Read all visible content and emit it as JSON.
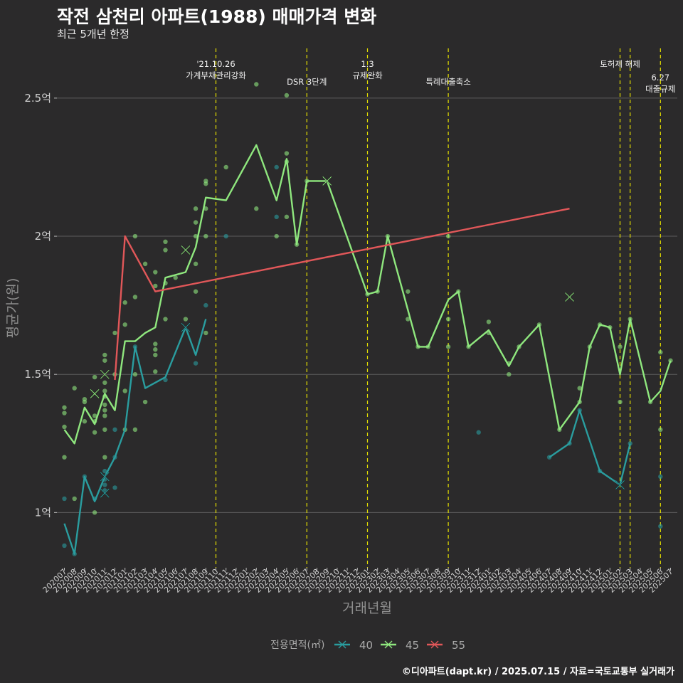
{
  "title": "작전 삼천리 아파트(1988) 매매가격 변화",
  "subtitle": "최근 5개년 한정",
  "caption": "©디아파트(dapt.kr) / 2025.07.15 / 자료=국토교통부 실거래가",
  "colors": {
    "background": "#2b2a2b",
    "s40": "#2a9d9f",
    "s45": "#8fe77e",
    "s55": "#e15759",
    "event_line": "#e7e200",
    "grid": "#5c5c5c",
    "text": "#cfcfcf"
  },
  "chart_data": {
    "type": "line",
    "xlabel": "거래년월",
    "ylabel": "평균가(원)",
    "ylim": [
      0.8,
      2.68
    ],
    "grid": true,
    "legend_position": "bottom",
    "legend_title": "전용면적(㎡)",
    "categories": [
      "202007",
      "202008",
      "202009",
      "202010",
      "202011",
      "202012",
      "202101",
      "202102",
      "202103",
      "202104",
      "202105",
      "202106",
      "202107",
      "202108",
      "202109",
      "202110",
      "202111",
      "202112",
      "202201",
      "202202",
      "202203",
      "202204",
      "202205",
      "202206",
      "202207",
      "202208",
      "202209",
      "202210",
      "202211",
      "202212",
      "202301",
      "202302",
      "202303",
      "202304",
      "202305",
      "202306",
      "202307",
      "202308",
      "202309",
      "202310",
      "202311",
      "202312",
      "202401",
      "202402",
      "202403",
      "202404",
      "202405",
      "202406",
      "202407",
      "202408",
      "202409",
      "202410",
      "202411",
      "202412",
      "202501",
      "202502",
      "202503",
      "202504",
      "202505",
      "202506",
      "202507"
    ],
    "y_ticks": [
      {
        "value": 1.0,
        "label": "1억"
      },
      {
        "value": 1.5,
        "label": "1.5억"
      },
      {
        "value": 2.0,
        "label": "2억"
      },
      {
        "value": 2.5,
        "label": "2.5억"
      }
    ],
    "series": [
      {
        "name": "40",
        "color": "#2a9d9f",
        "line": [
          [
            "202007",
            0.96
          ],
          [
            "202008",
            0.85
          ],
          [
            "202009",
            1.13
          ],
          [
            "202010",
            1.04
          ],
          [
            "202011",
            1.13
          ],
          [
            "202012",
            1.2
          ],
          [
            "202101",
            1.3
          ],
          [
            "202102",
            1.6
          ],
          [
            "202103",
            1.45
          ],
          [
            "202105",
            1.49
          ],
          [
            "202107",
            1.67
          ],
          [
            "202108",
            1.57
          ],
          [
            "202109",
            1.7
          ],
          null,
          [
            "202407",
            1.2
          ],
          [
            "202409",
            1.25
          ],
          [
            "202410",
            1.37
          ],
          [
            "202412",
            1.15
          ],
          [
            "202502",
            1.1
          ],
          [
            "202503",
            1.25
          ]
        ],
        "x_marks": [
          [
            "202011",
            1.07
          ],
          [
            "202011",
            1.13
          ],
          [
            "202107",
            1.67
          ],
          [
            "202502",
            1.1
          ]
        ]
      },
      {
        "name": "45",
        "color": "#8fe77e",
        "line": [
          [
            "202007",
            1.3
          ],
          [
            "202008",
            1.25
          ],
          [
            "202009",
            1.38
          ],
          [
            "202010",
            1.32
          ],
          [
            "202011",
            1.43
          ],
          [
            "202012",
            1.37
          ],
          [
            "202101",
            1.62
          ],
          [
            "202102",
            1.62
          ],
          [
            "202103",
            1.65
          ],
          [
            "202104",
            1.67
          ],
          [
            "202105",
            1.85
          ],
          [
            "202106",
            1.86
          ],
          [
            "202107",
            1.87
          ],
          [
            "202108",
            1.96
          ],
          [
            "202109",
            2.14
          ],
          [
            "202111",
            2.13
          ],
          [
            "202202",
            2.33
          ],
          [
            "202204",
            2.13
          ],
          [
            "202205",
            2.28
          ],
          [
            "202206",
            1.97
          ],
          [
            "202207",
            2.2
          ],
          [
            "202209",
            2.2
          ],
          [
            "202301",
            1.79
          ],
          [
            "202302",
            1.8
          ],
          [
            "202303",
            2.0
          ],
          [
            "202306",
            1.6
          ],
          [
            "202307",
            1.6
          ],
          [
            "202309",
            1.77
          ],
          [
            "202310",
            1.8
          ],
          [
            "202311",
            1.6
          ],
          [
            "202401",
            1.66
          ],
          [
            "202403",
            1.53
          ],
          [
            "202404",
            1.6
          ],
          [
            "202406",
            1.68
          ],
          [
            "202408",
            1.3
          ],
          [
            "202410",
            1.4
          ],
          [
            "202411",
            1.6
          ],
          [
            "202412",
            1.68
          ],
          [
            "202501",
            1.67
          ],
          [
            "202502",
            1.5
          ],
          [
            "202503",
            1.7
          ],
          [
            "202505",
            1.4
          ],
          [
            "202506",
            1.44
          ],
          [
            "202507",
            1.55
          ]
        ],
        "x_marks": [
          [
            "202010",
            1.43
          ],
          [
            "202011",
            1.5
          ],
          [
            "202107",
            1.95
          ],
          [
            "202209",
            2.2
          ],
          [
            "202409",
            1.78
          ]
        ]
      },
      {
        "name": "55",
        "color": "#e15759",
        "line": [
          [
            "202012",
            1.48
          ],
          [
            "202101",
            2.0
          ],
          [
            "202104",
            1.8
          ],
          [
            "202409",
            2.1
          ]
        ],
        "x_marks": []
      }
    ],
    "points": [
      [
        "202007",
        1.38,
        "45"
      ],
      [
        "202007",
        1.36,
        "45"
      ],
      [
        "202007",
        1.31,
        "45"
      ],
      [
        "202007",
        1.2,
        "45"
      ],
      [
        "202007",
        1.05,
        "40"
      ],
      [
        "202007",
        0.88,
        "40"
      ],
      [
        "202008",
        1.45,
        "45"
      ],
      [
        "202008",
        1.05,
        "45"
      ],
      [
        "202008",
        0.85,
        "40"
      ],
      [
        "202009",
        1.41,
        "45"
      ],
      [
        "202009",
        1.4,
        "45"
      ],
      [
        "202009",
        1.33,
        "45"
      ],
      [
        "202009",
        1.13,
        "40"
      ],
      [
        "202010",
        1.49,
        "45"
      ],
      [
        "202010",
        1.35,
        "45"
      ],
      [
        "202010",
        1.33,
        "45"
      ],
      [
        "202010",
        1.29,
        "45"
      ],
      [
        "202010",
        1.05,
        "40"
      ],
      [
        "202010",
        1.0,
        "45"
      ],
      [
        "202011",
        1.57,
        "45"
      ],
      [
        "202011",
        1.55,
        "45"
      ],
      [
        "202011",
        1.47,
        "45"
      ],
      [
        "202011",
        1.44,
        "45"
      ],
      [
        "202011",
        1.42,
        "45"
      ],
      [
        "202011",
        1.39,
        "45"
      ],
      [
        "202011",
        1.37,
        "45"
      ],
      [
        "202011",
        1.35,
        "45"
      ],
      [
        "202011",
        1.3,
        "45"
      ],
      [
        "202011",
        1.2,
        "45"
      ],
      [
        "202011",
        1.15,
        "40"
      ],
      [
        "202011",
        1.12,
        "40"
      ],
      [
        "202011",
        1.1,
        "40"
      ],
      [
        "202011",
        1.08,
        "40"
      ],
      [
        "202012",
        1.65,
        "45"
      ],
      [
        "202012",
        1.5,
        "45"
      ],
      [
        "202012",
        1.3,
        "40"
      ],
      [
        "202012",
        1.2,
        "40"
      ],
      [
        "202012",
        1.09,
        "40"
      ],
      [
        "202101",
        1.76,
        "45"
      ],
      [
        "202101",
        1.68,
        "45"
      ],
      [
        "202101",
        1.44,
        "45"
      ],
      [
        "202101",
        1.3,
        "45"
      ],
      [
        "202102",
        2.0,
        "45"
      ],
      [
        "202102",
        1.78,
        "45"
      ],
      [
        "202102",
        1.6,
        "40"
      ],
      [
        "202102",
        1.5,
        "45"
      ],
      [
        "202102",
        1.3,
        "45"
      ],
      [
        "202103",
        1.9,
        "45"
      ],
      [
        "202103",
        1.4,
        "45"
      ],
      [
        "202104",
        1.87,
        "45"
      ],
      [
        "202104",
        1.82,
        "45"
      ],
      [
        "202104",
        1.61,
        "45"
      ],
      [
        "202104",
        1.59,
        "45"
      ],
      [
        "202104",
        1.57,
        "45"
      ],
      [
        "202104",
        1.51,
        "45"
      ],
      [
        "202105",
        1.98,
        "45"
      ],
      [
        "202105",
        1.95,
        "45"
      ],
      [
        "202105",
        1.83,
        "45"
      ],
      [
        "202105",
        1.7,
        "45"
      ],
      [
        "202105",
        1.48,
        "40"
      ],
      [
        "202106",
        1.85,
        "45"
      ],
      [
        "202107",
        1.7,
        "45"
      ],
      [
        "202108",
        2.1,
        "45"
      ],
      [
        "202108",
        2.05,
        "45"
      ],
      [
        "202108",
        2.0,
        "45"
      ],
      [
        "202108",
        1.9,
        "45"
      ],
      [
        "202108",
        1.8,
        "45"
      ],
      [
        "202108",
        1.54,
        "40"
      ],
      [
        "202109",
        2.2,
        "45"
      ],
      [
        "202109",
        2.19,
        "45"
      ],
      [
        "202109",
        2.1,
        "45"
      ],
      [
        "202109",
        2.0,
        "45"
      ],
      [
        "202109",
        1.75,
        "40"
      ],
      [
        "202109",
        1.65,
        "45"
      ],
      [
        "202111",
        2.25,
        "45"
      ],
      [
        "202111",
        2.0,
        "40"
      ],
      [
        "202202",
        2.55,
        "45"
      ],
      [
        "202202",
        2.1,
        "45"
      ],
      [
        "202204",
        2.25,
        "40"
      ],
      [
        "202204",
        2.07,
        "40"
      ],
      [
        "202204",
        2.0,
        "45"
      ],
      [
        "202205",
        2.51,
        "45"
      ],
      [
        "202205",
        2.3,
        "45"
      ],
      [
        "202205",
        2.27,
        "45"
      ],
      [
        "202205",
        2.07,
        "45"
      ],
      [
        "202206",
        1.97,
        "45"
      ],
      [
        "202207",
        2.2,
        "45"
      ],
      [
        "202301",
        1.79,
        "45"
      ],
      [
        "202302",
        1.8,
        "45"
      ],
      [
        "202303",
        2.0,
        "45"
      ],
      [
        "202305",
        1.8,
        "45"
      ],
      [
        "202305",
        1.7,
        "45"
      ],
      [
        "202306",
        1.6,
        "45"
      ],
      [
        "202307",
        1.6,
        "45"
      ],
      [
        "202309",
        2.0,
        "45"
      ],
      [
        "202309",
        1.7,
        "45"
      ],
      [
        "202309",
        1.6,
        "45"
      ],
      [
        "202310",
        1.8,
        "45"
      ],
      [
        "202311",
        1.6,
        "45"
      ],
      [
        "202312",
        1.29,
        "40"
      ],
      [
        "202401",
        1.69,
        "45"
      ],
      [
        "202401",
        1.65,
        "45"
      ],
      [
        "202403",
        1.54,
        "45"
      ],
      [
        "202403",
        1.5,
        "45"
      ],
      [
        "202404",
        1.6,
        "45"
      ],
      [
        "202406",
        1.68,
        "45"
      ],
      [
        "202407",
        1.2,
        "40"
      ],
      [
        "202408",
        1.3,
        "45"
      ],
      [
        "202409",
        1.25,
        "40"
      ],
      [
        "202410",
        1.45,
        "45"
      ],
      [
        "202410",
        1.4,
        "45"
      ],
      [
        "202410",
        1.37,
        "40"
      ],
      [
        "202411",
        1.6,
        "45"
      ],
      [
        "202412",
        1.68,
        "45"
      ],
      [
        "202412",
        1.15,
        "40"
      ],
      [
        "202501",
        1.67,
        "45"
      ],
      [
        "202502",
        1.6,
        "45"
      ],
      [
        "202502",
        1.4,
        "45"
      ],
      [
        "202503",
        1.7,
        "45"
      ],
      [
        "202503",
        1.25,
        "40"
      ],
      [
        "202505",
        1.4,
        "45"
      ],
      [
        "202506",
        1.58,
        "45"
      ],
      [
        "202506",
        1.3,
        "45"
      ],
      [
        "202506",
        1.13,
        "40"
      ],
      [
        "202506",
        0.95,
        "40"
      ],
      [
        "202507",
        1.55,
        "45"
      ]
    ],
    "events": [
      {
        "x": "202110",
        "label": "'21.10.26\n가계부채관리강화",
        "row": 0
      },
      {
        "x": "202207",
        "label": "DSR 3단계",
        "row": 1
      },
      {
        "x": "202301",
        "label": "1.3\n규제완화",
        "row": 0
      },
      {
        "x": "202309",
        "label": "특례대출축소",
        "row": 1
      },
      {
        "x": "202502",
        "label": "토허제 해제",
        "row": 0
      },
      {
        "x": "202503",
        "label": "",
        "row": 0
      },
      {
        "x": "202506",
        "label": "6.27\n대출규제",
        "row": 2
      }
    ]
  }
}
